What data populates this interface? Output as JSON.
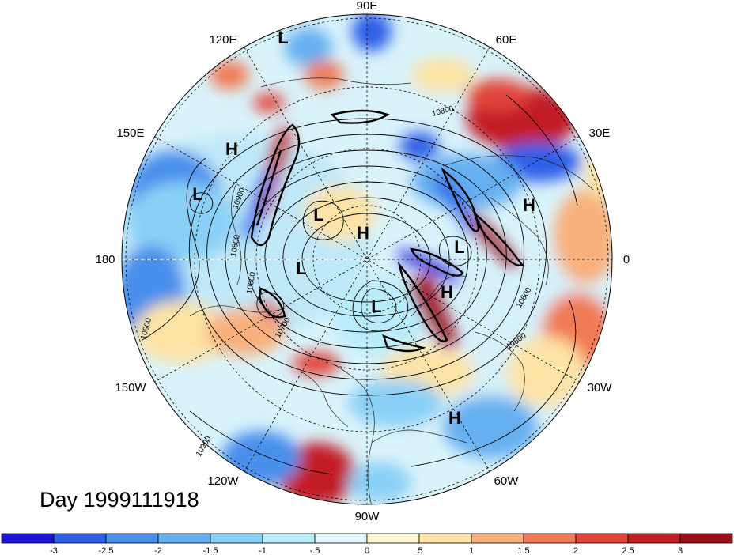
{
  "title": "Day 1999111918",
  "longitude_labels": [
    "90E",
    "60E",
    "30E",
    "0",
    "30W",
    "60W",
    "90W",
    "120W",
    "150W",
    "180",
    "150E",
    "120E"
  ],
  "pressure_centers": [
    {
      "label": "L",
      "note": "near 120E"
    },
    {
      "label": "H",
      "note": "150E"
    },
    {
      "label": "L",
      "note": "north Pacific"
    },
    {
      "label": "L",
      "note": "Siberia"
    },
    {
      "label": "H",
      "note": "pole"
    },
    {
      "label": "L",
      "note": "Bering"
    },
    {
      "label": "H",
      "note": "east Europe"
    },
    {
      "label": "L",
      "note": "Scandinavia"
    },
    {
      "label": "H",
      "note": "north Atlantic"
    },
    {
      "label": "L",
      "note": "Canada"
    },
    {
      "label": "H",
      "note": "subtropical Atlantic"
    }
  ],
  "contour_labels": [
    "10800",
    "10900",
    "10800",
    "10600",
    "10700",
    "10900",
    "10800",
    "10600",
    "10900"
  ],
  "colorbar": {
    "ticks": [
      "-3",
      "-2.5",
      "-2",
      "-1.5",
      "-1",
      "-.5",
      "0",
      ".5",
      "1",
      "1.5",
      "2",
      "2.5",
      "3"
    ],
    "colors": [
      "#1a14d6",
      "#2f5ee8",
      "#4a8fec",
      "#66b0f0",
      "#8ad0f6",
      "#b9ecfb",
      "#e3f7fd",
      "#fdf7d4",
      "#fde3a6",
      "#f8b07b",
      "#f07a55",
      "#e2443a",
      "#c21f25",
      "#9b0e1a"
    ]
  }
}
